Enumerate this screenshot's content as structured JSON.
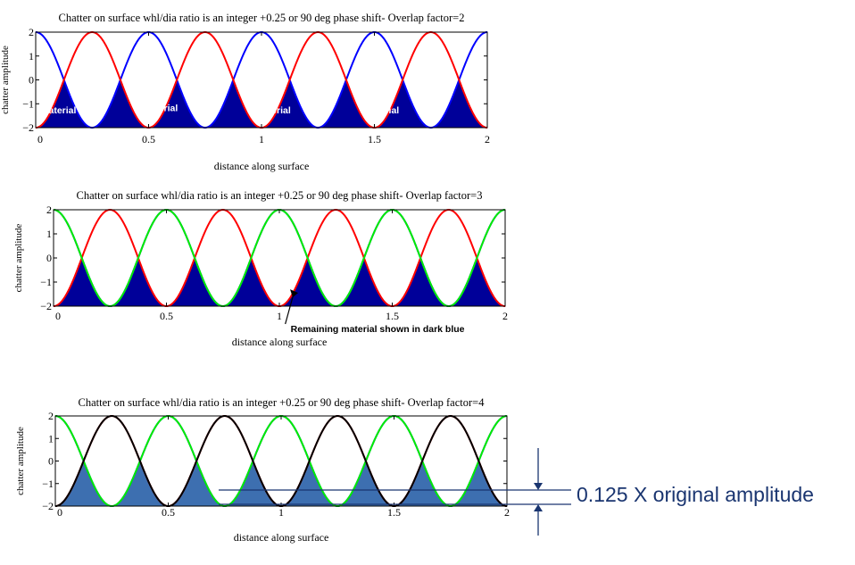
{
  "colors": {
    "blue": "#0000ff",
    "red": "#ff0000",
    "green": "#00ee00",
    "black": "#000000",
    "fill_dark": "#000099",
    "fill_steel": "#3d6fb0",
    "frame": "#000000",
    "annotation": "#1a3570"
  },
  "chart_data": [
    {
      "type": "line",
      "title": "Chatter on surface whl/dia ratio is an integer +0.25 or 90 deg phase shift- Overlap factor=2",
      "xlabel": "distance along surface",
      "ylabel": "chatter amplitude",
      "xlim": [
        0,
        2
      ],
      "ylim": [
        -2,
        2
      ],
      "xticks": [
        "0",
        "0.5",
        "1",
        "1.5",
        "2"
      ],
      "yticks": [
        "2",
        "1",
        "0",
        "−1",
        "−2"
      ],
      "overlap_factor": 2,
      "period": 0.5,
      "amplitude": 2,
      "series": [
        {
          "color": "blue",
          "phase": 0.0
        },
        {
          "color": "red",
          "phase": 0.25
        }
      ],
      "fill": "dark",
      "annotations": [
        {
          "text": "material",
          "x": 0.1,
          "y": -1.4
        },
        {
          "text": "material",
          "x": 0.55,
          "y": -1.3
        },
        {
          "text": "material",
          "x": 1.05,
          "y": -1.4
        },
        {
          "text": "material",
          "x": 1.53,
          "y": -1.4
        }
      ]
    },
    {
      "type": "line",
      "title": "Chatter on surface whl/dia ratio is an integer +0.25 or 90 deg phase shift- Overlap factor=3",
      "xlabel": "distance along surface",
      "ylabel": "chatter amplitude",
      "xlim": [
        0,
        2
      ],
      "ylim": [
        -2,
        2
      ],
      "xticks": [
        "0",
        "0.5",
        "1",
        "1.5",
        "2"
      ],
      "yticks": [
        "2",
        "1",
        "0",
        "−1",
        "−2"
      ],
      "overlap_factor": 3,
      "period": 0.5,
      "amplitude": 2,
      "series": [
        {
          "color": "blue",
          "phase": 0.0
        },
        {
          "color": "red",
          "phase": 0.25
        },
        {
          "color": "green",
          "phase": 0.5
        }
      ],
      "fill": "dark",
      "callout": {
        "text": "Remaining material  shown in dark blue",
        "x": 1.05,
        "y": -1.4
      }
    },
    {
      "type": "line",
      "title": "Chatter on surface whl/dia ratio is an integer +0.25 or 90 deg phase shift- Overlap factor=4",
      "xlabel": "distance along surface",
      "ylabel": "chatter amplitude",
      "xlim": [
        0,
        2
      ],
      "ylim": [
        -2,
        2
      ],
      "xticks": [
        "0",
        "0.5",
        "1",
        "1.5",
        "2"
      ],
      "yticks": [
        "2",
        "1",
        "0",
        "−1",
        "−2"
      ],
      "overlap_factor": 4,
      "period": 0.5,
      "amplitude": 2,
      "series": [
        {
          "color": "blue",
          "phase": 0.0
        },
        {
          "color": "red",
          "phase": 0.25
        },
        {
          "color": "green",
          "phase": 0.5
        },
        {
          "color": "black",
          "phase": 0.75
        }
      ],
      "fill": "steel"
    }
  ],
  "amplitude_note": "0.125 X original amplitude"
}
